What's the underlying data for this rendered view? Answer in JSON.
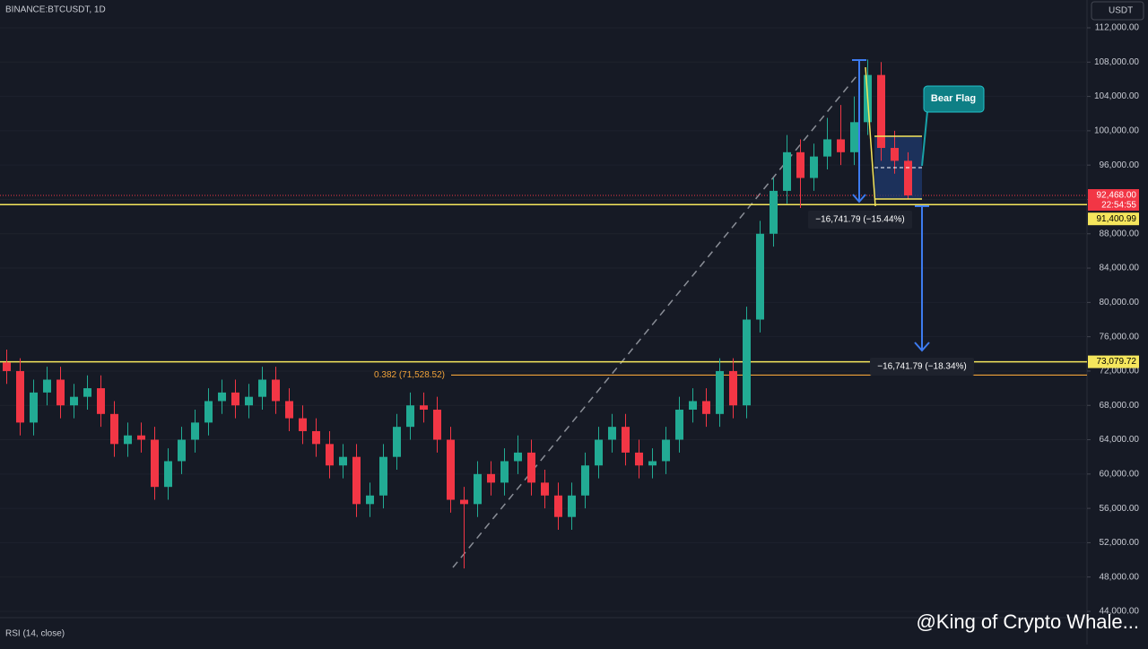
{
  "header": {
    "symbol": "BINANCE:BTCUSDT, 1D",
    "currency": "USDT",
    "indicator": "RSI (14, close)",
    "watermark": "@King of Crypto Whale..."
  },
  "chart_data": {
    "type": "candlestick",
    "open": [
      73000,
      72000,
      66000,
      69500,
      71000,
      68000,
      69000,
      70000,
      67000,
      63500,
      64500,
      64000,
      58500,
      61500,
      64000,
      66000,
      68500,
      69500,
      68000,
      69000,
      71000,
      68500,
      66500,
      65000,
      63500,
      61000,
      62000,
      56500,
      57500,
      62000,
      65500,
      68000,
      67500,
      64000,
      57000,
      56500,
      60000,
      59000,
      61500,
      62500,
      59000,
      57500,
      55000,
      57500,
      61000,
      64000,
      65500,
      62500,
      61000,
      61500,
      64000,
      67500,
      68500,
      67000,
      72000,
      68000,
      78000,
      88000,
      93000,
      97500,
      94500,
      97000,
      99000,
      97500,
      101000,
      106500,
      98000,
      96500
    ],
    "high": [
      74500,
      73500,
      71000,
      72500,
      72500,
      70500,
      71500,
      71500,
      68500,
      66000,
      66000,
      65500,
      63000,
      65500,
      67500,
      70000,
      71000,
      71000,
      70500,
      72500,
      72500,
      70000,
      68000,
      66500,
      65000,
      63500,
      63500,
      59000,
      63500,
      67000,
      69500,
      69500,
      69000,
      65500,
      58500,
      61500,
      61500,
      63000,
      64500,
      64000,
      60500,
      59000,
      59000,
      62500,
      65500,
      67000,
      67000,
      64000,
      63000,
      65500,
      69000,
      70000,
      70000,
      73500,
      73500,
      79500,
      89500,
      94500,
      99500,
      99000,
      98500,
      101500,
      103000,
      104000,
      108300,
      108000,
      100000,
      97500
    ],
    "low": [
      70500,
      64500,
      64500,
      68000,
      66500,
      66500,
      67500,
      65500,
      62000,
      62000,
      62500,
      57000,
      57000,
      60000,
      62500,
      64500,
      67000,
      66500,
      66500,
      67500,
      67000,
      65000,
      63500,
      62000,
      59500,
      59500,
      55000,
      55000,
      56000,
      60500,
      64000,
      66000,
      62500,
      55500,
      49000,
      55000,
      57500,
      57500,
      60000,
      57500,
      56000,
      53500,
      53500,
      56000,
      59500,
      62500,
      61000,
      59500,
      59500,
      60000,
      62500,
      66000,
      65500,
      65500,
      66500,
      66500,
      76500,
      86500,
      91500,
      91000,
      93000,
      95500,
      96000,
      96000,
      99500,
      96500,
      95000,
      92000
    ],
    "close": [
      72000,
      66000,
      69500,
      71000,
      68000,
      69000,
      70000,
      67000,
      63500,
      64500,
      64000,
      58500,
      61500,
      64000,
      66000,
      68500,
      69500,
      68000,
      69000,
      71000,
      68500,
      66500,
      65000,
      63500,
      61000,
      62000,
      56500,
      57500,
      62000,
      65500,
      68000,
      67500,
      64000,
      57000,
      56500,
      60000,
      59000,
      61500,
      62500,
      59000,
      57500,
      55000,
      57500,
      61000,
      64000,
      65500,
      62500,
      61000,
      61500,
      64000,
      67500,
      68500,
      67000,
      72000,
      68000,
      78000,
      88000,
      93000,
      97500,
      94500,
      97000,
      99000,
      97500,
      101000,
      106500,
      98000,
      96500,
      92468
    ],
    "up_color": "#22ab94",
    "down_color": "#f23645",
    "ylim": [
      44000,
      112000
    ],
    "yticks": [
      {
        "value": 44000,
        "label": "44,000.00"
      },
      {
        "value": 48000,
        "label": "48,000.00"
      },
      {
        "value": 52000,
        "label": "52,000.00"
      },
      {
        "value": 56000,
        "label": "56,000.00"
      },
      {
        "value": 60000,
        "label": "60,000.00"
      },
      {
        "value": 64000,
        "label": "64,000.00"
      },
      {
        "value": 68000,
        "label": "68,000.00"
      },
      {
        "value": 72000,
        "label": "72,000.00"
      },
      {
        "value": 76000,
        "label": "76,000.00"
      },
      {
        "value": 80000,
        "label": "80,000.00"
      },
      {
        "value": 84000,
        "label": "84,000.00"
      },
      {
        "value": 88000,
        "label": "88,000.00"
      },
      {
        "value": 92000,
        "label": "92,000.00"
      },
      {
        "value": 96000,
        "label": "96,000.00"
      },
      {
        "value": 100000,
        "label": "100,000.00"
      },
      {
        "value": 104000,
        "label": "104,000.00"
      },
      {
        "value": 108000,
        "label": "108,000.00"
      },
      {
        "value": 112000,
        "label": "112,000.00"
      }
    ],
    "current_price": {
      "value": 92468,
      "label": "92,468.00",
      "countdown": "22:54:55"
    },
    "levels": [
      {
        "value": 91400.99,
        "label": "91,400.99",
        "color": "#f5e65c"
      },
      {
        "value": 73079.72,
        "label": "73,079.72",
        "color": "#f5e65c"
      }
    ],
    "fib": {
      "value": 71528.52,
      "label": "0.382 (71,528.52)",
      "color": "#f0a23a"
    },
    "annotations": {
      "pattern": "Bear Flag",
      "drop1": "−16,741.79 (−15.44%)",
      "drop2": "−16,741.79 (−18.34%)"
    }
  }
}
